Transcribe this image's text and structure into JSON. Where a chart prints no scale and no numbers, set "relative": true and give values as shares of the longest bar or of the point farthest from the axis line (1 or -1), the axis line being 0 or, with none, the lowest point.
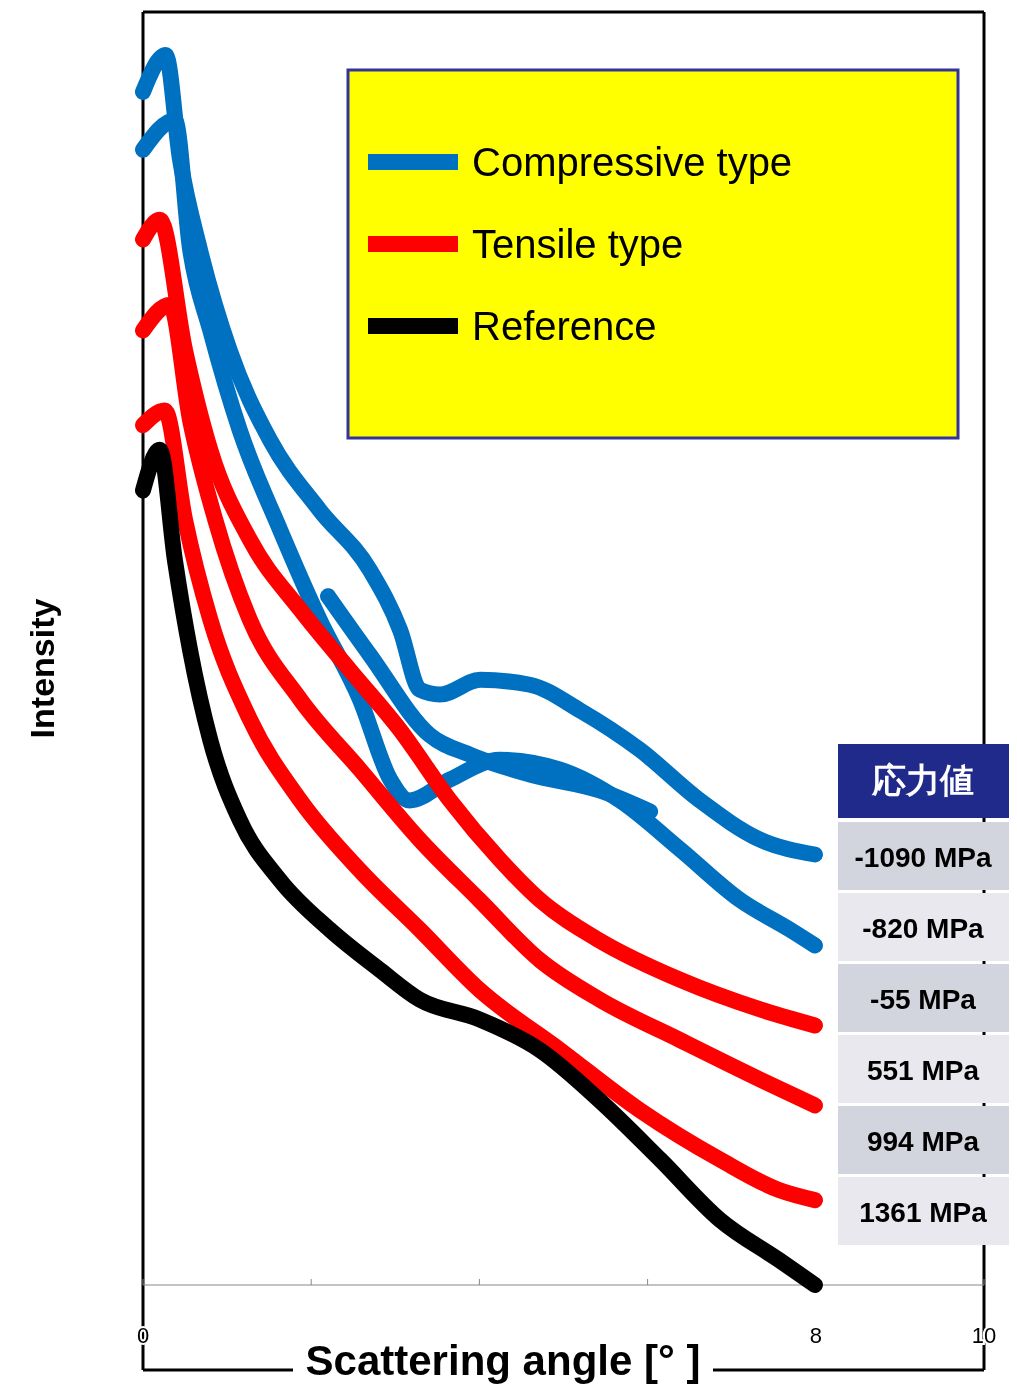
{
  "chart_data": {
    "type": "line",
    "relative": true,
    "xlabel": "Scattering angle [° ]",
    "ylabel": "Intensity",
    "xlim": [
      0,
      10
    ],
    "xticks": [
      0,
      {
        "value": 2,
        "label": null
      },
      {
        "value": 4,
        "label": null
      },
      {
        "value": 6,
        "label": null
      },
      8,
      10
    ],
    "grid": false,
    "legend": "top right",
    "line_style": "solid",
    "tick_labels": "x",
    "annotations": [
      "応力値",
      "-1090 MPa",
      "-820 MPa",
      "-55 MPa",
      "551 MPa",
      "994 MPa",
      "1361 MPa"
    ],
    "series": [
      {
        "name": "Compressive type",
        "color": "#0070c0",
        "x": [
          0,
          0.27,
          0.44,
          0.68,
          1.03,
          1.51,
          2.1,
          2.7,
          3.06,
          3.29,
          3.53,
          4.01,
          4.6,
          5.2,
          5.91,
          6.62,
          7.34,
          7.99
        ],
        "values": [
          0.97,
          1.0,
          0.915,
          0.841,
          0.76,
          0.687,
          0.63,
          0.581,
          0.532,
          0.484,
          0.48,
          0.492,
          0.488,
          0.467,
          0.435,
          0.394,
          0.362,
          0.35
        ]
      },
      {
        "color": "#0070c0",
        "x": [
          2.2,
          2.7,
          3.41,
          3.89,
          4.6,
          5.43,
          6.03
        ],
        "values": [
          0.56,
          0.512,
          0.447,
          0.431,
          0.415,
          0.402,
          0.385
        ]
      },
      {
        "color": "#0070c0",
        "x": [
          0,
          0.38,
          0.56,
          0.8,
          1.15,
          1.63,
          2.1,
          2.58,
          2.94,
          3.17,
          3.65,
          4.24,
          4.96,
          5.67,
          6.39,
          7.1,
          7.69,
          7.99
        ],
        "values": [
          0.923,
          0.947,
          0.842,
          0.776,
          0.695,
          0.614,
          0.541,
          0.476,
          0.411,
          0.394,
          0.411,
          0.427,
          0.419,
          0.394,
          0.354,
          0.313,
          0.289,
          0.276
        ]
      },
      {
        "name": "Tensile type",
        "color": "#ff0000",
        "x": [
          0,
          0.2,
          0.5,
          0.8,
          1.27,
          1.87,
          2.46,
          3.06,
          3.65,
          4.24,
          4.72,
          5.43,
          6.39,
          7.34,
          7.99
        ],
        "values": [
          0.85,
          0.866,
          0.76,
          0.679,
          0.606,
          0.549,
          0.5,
          0.451,
          0.394,
          0.346,
          0.313,
          0.28,
          0.248,
          0.224,
          0.211
        ]
      },
      {
        "color": "#ff0000",
        "x": [
          0,
          0.32,
          0.56,
          0.86,
          1.27,
          1.87,
          2.58,
          3.29,
          4.0,
          4.72,
          5.43,
          6.39,
          7.34,
          7.99
        ],
        "values": [
          0.776,
          0.797,
          0.703,
          0.622,
          0.541,
          0.476,
          0.419,
          0.362,
          0.313,
          0.264,
          0.232,
          0.199,
          0.167,
          0.146
        ]
      },
      {
        "color": "#ff0000",
        "x": [
          0,
          0.26,
          0.5,
          0.8,
          1.27,
          1.87,
          2.58,
          3.29,
          4.0,
          4.96,
          5.91,
          6.86,
          7.57,
          7.99
        ],
        "values": [
          0.699,
          0.711,
          0.622,
          0.541,
          0.46,
          0.394,
          0.337,
          0.289,
          0.24,
          0.191,
          0.142,
          0.102,
          0.077,
          0.069
        ]
      },
      {
        "name": "Reference",
        "color": "#000000",
        "x": [
          0,
          0.2,
          0.38,
          0.56,
          0.8,
          1.15,
          1.63,
          2.22,
          2.82,
          3.29,
          4.0,
          4.72,
          5.43,
          6.15,
          6.86,
          7.57,
          7.99
        ],
        "values": [
          0.646,
          0.679,
          0.589,
          0.516,
          0.443,
          0.378,
          0.329,
          0.289,
          0.256,
          0.232,
          0.216,
          0.191,
          0.15,
          0.102,
          0.053,
          0.02,
          0
        ]
      }
    ]
  }
}
